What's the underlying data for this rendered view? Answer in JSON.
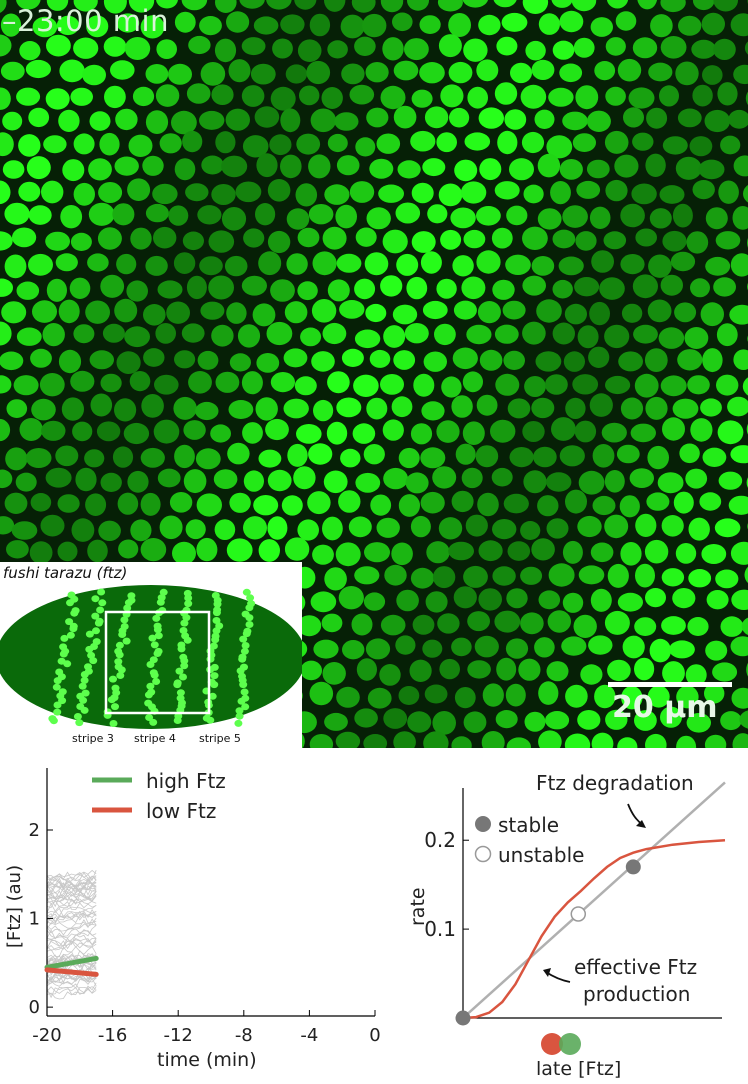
{
  "micrograph": {
    "timestamp": "–23:00 min",
    "scale_bar_label": "20 μm"
  },
  "inset": {
    "title": "fushi tarazu (ftz)",
    "stripe_labels": [
      "stripe 3",
      "stripe 4",
      "stripe 5"
    ]
  },
  "chart_left": {
    "legend": [
      {
        "name": "high Ftz",
        "color": "#5aaa5a"
      },
      {
        "name": "low Ftz",
        "color": "#d9553f"
      }
    ],
    "ylabel": "[Ftz] (au)",
    "xlabel": "time (min)"
  },
  "chart_right": {
    "ylabel": "rate",
    "xlabel": "late [Ftz]",
    "annotation_degradation": "Ftz degradation",
    "annotation_production_1": "effective Ftz",
    "annotation_production_2": "production",
    "legend_stable": "stable",
    "legend_unstable": "unstable"
  },
  "chart_data": [
    {
      "type": "line",
      "x_ticks": [
        "-20",
        "-16",
        "-12",
        "-8",
        "-4",
        "0"
      ],
      "y_ticks": [
        "0",
        "1",
        "2"
      ],
      "xlim": [
        -20,
        0
      ],
      "ylim": [
        -0.1,
        2.7
      ],
      "x": [
        -20,
        -17
      ],
      "series": [
        {
          "name": "high Ftz",
          "values": [
            0.45,
            0.55
          ],
          "color": "#5aaa5a"
        },
        {
          "name": "low Ftz",
          "values": [
            0.42,
            0.37
          ],
          "color": "#d9553f"
        }
      ],
      "background_traces_color": "#c8c8c8"
    },
    {
      "type": "line",
      "y_ticks": [
        "0.1",
        "0.2"
      ],
      "xlim": [
        0,
        1
      ],
      "ylim": [
        0,
        0.27
      ],
      "degradation_line": {
        "x": [
          0,
          1
        ],
        "y": [
          0,
          0.265
        ],
        "color": "#b0b0b0"
      },
      "production_curve": {
        "x": [
          0,
          0.05,
          0.1,
          0.15,
          0.2,
          0.25,
          0.3,
          0.35,
          0.4,
          0.45,
          0.5,
          0.55,
          0.6,
          0.65,
          0.7,
          0.8,
          0.9,
          1.0
        ],
        "y": [
          0,
          0.001,
          0.006,
          0.018,
          0.038,
          0.065,
          0.092,
          0.114,
          0.13,
          0.143,
          0.157,
          0.17,
          0.18,
          0.186,
          0.19,
          0.195,
          0.198,
          0.2
        ],
        "color": "#d9553f"
      },
      "fixed_points": [
        {
          "x": 0,
          "y": 0,
          "kind": "stable"
        },
        {
          "x": 0.44,
          "y": 0.117,
          "kind": "unstable"
        },
        {
          "x": 0.65,
          "y": 0.17,
          "kind": "stable"
        }
      ]
    }
  ]
}
